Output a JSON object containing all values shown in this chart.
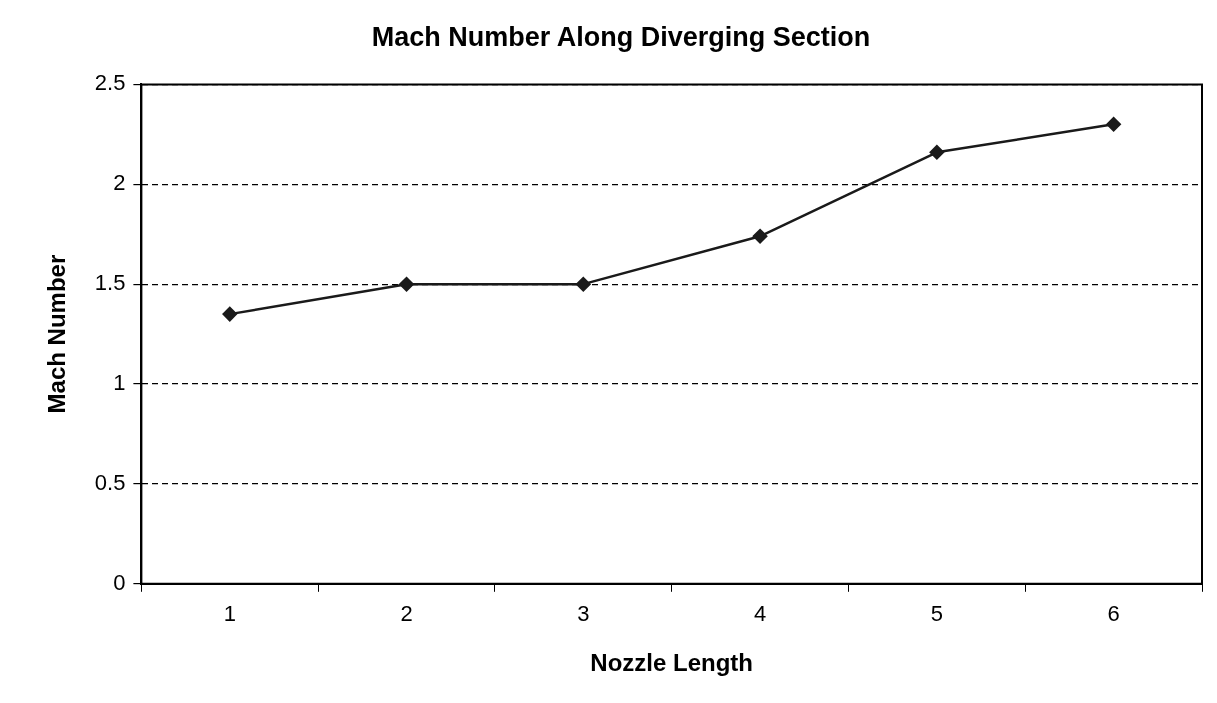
{
  "chart_data": {
    "type": "line",
    "title": "Mach Number Along Diverging Section",
    "xlabel": "Nozzle Length",
    "ylabel": "Mach Number",
    "categories": [
      "1",
      "2",
      "3",
      "4",
      "5",
      "6"
    ],
    "series": [
      {
        "color": "#1a1a1a",
        "values": [
          1.35,
          1.5,
          1.5,
          1.74,
          2.16,
          2.3
        ]
      }
    ],
    "ylim": [
      0,
      2.5
    ],
    "yticks": [
      0,
      0.5,
      1,
      1.5,
      2,
      2.5
    ],
    "grid": "y",
    "legend": false,
    "marker": "diamond",
    "line_style": "solid"
  }
}
